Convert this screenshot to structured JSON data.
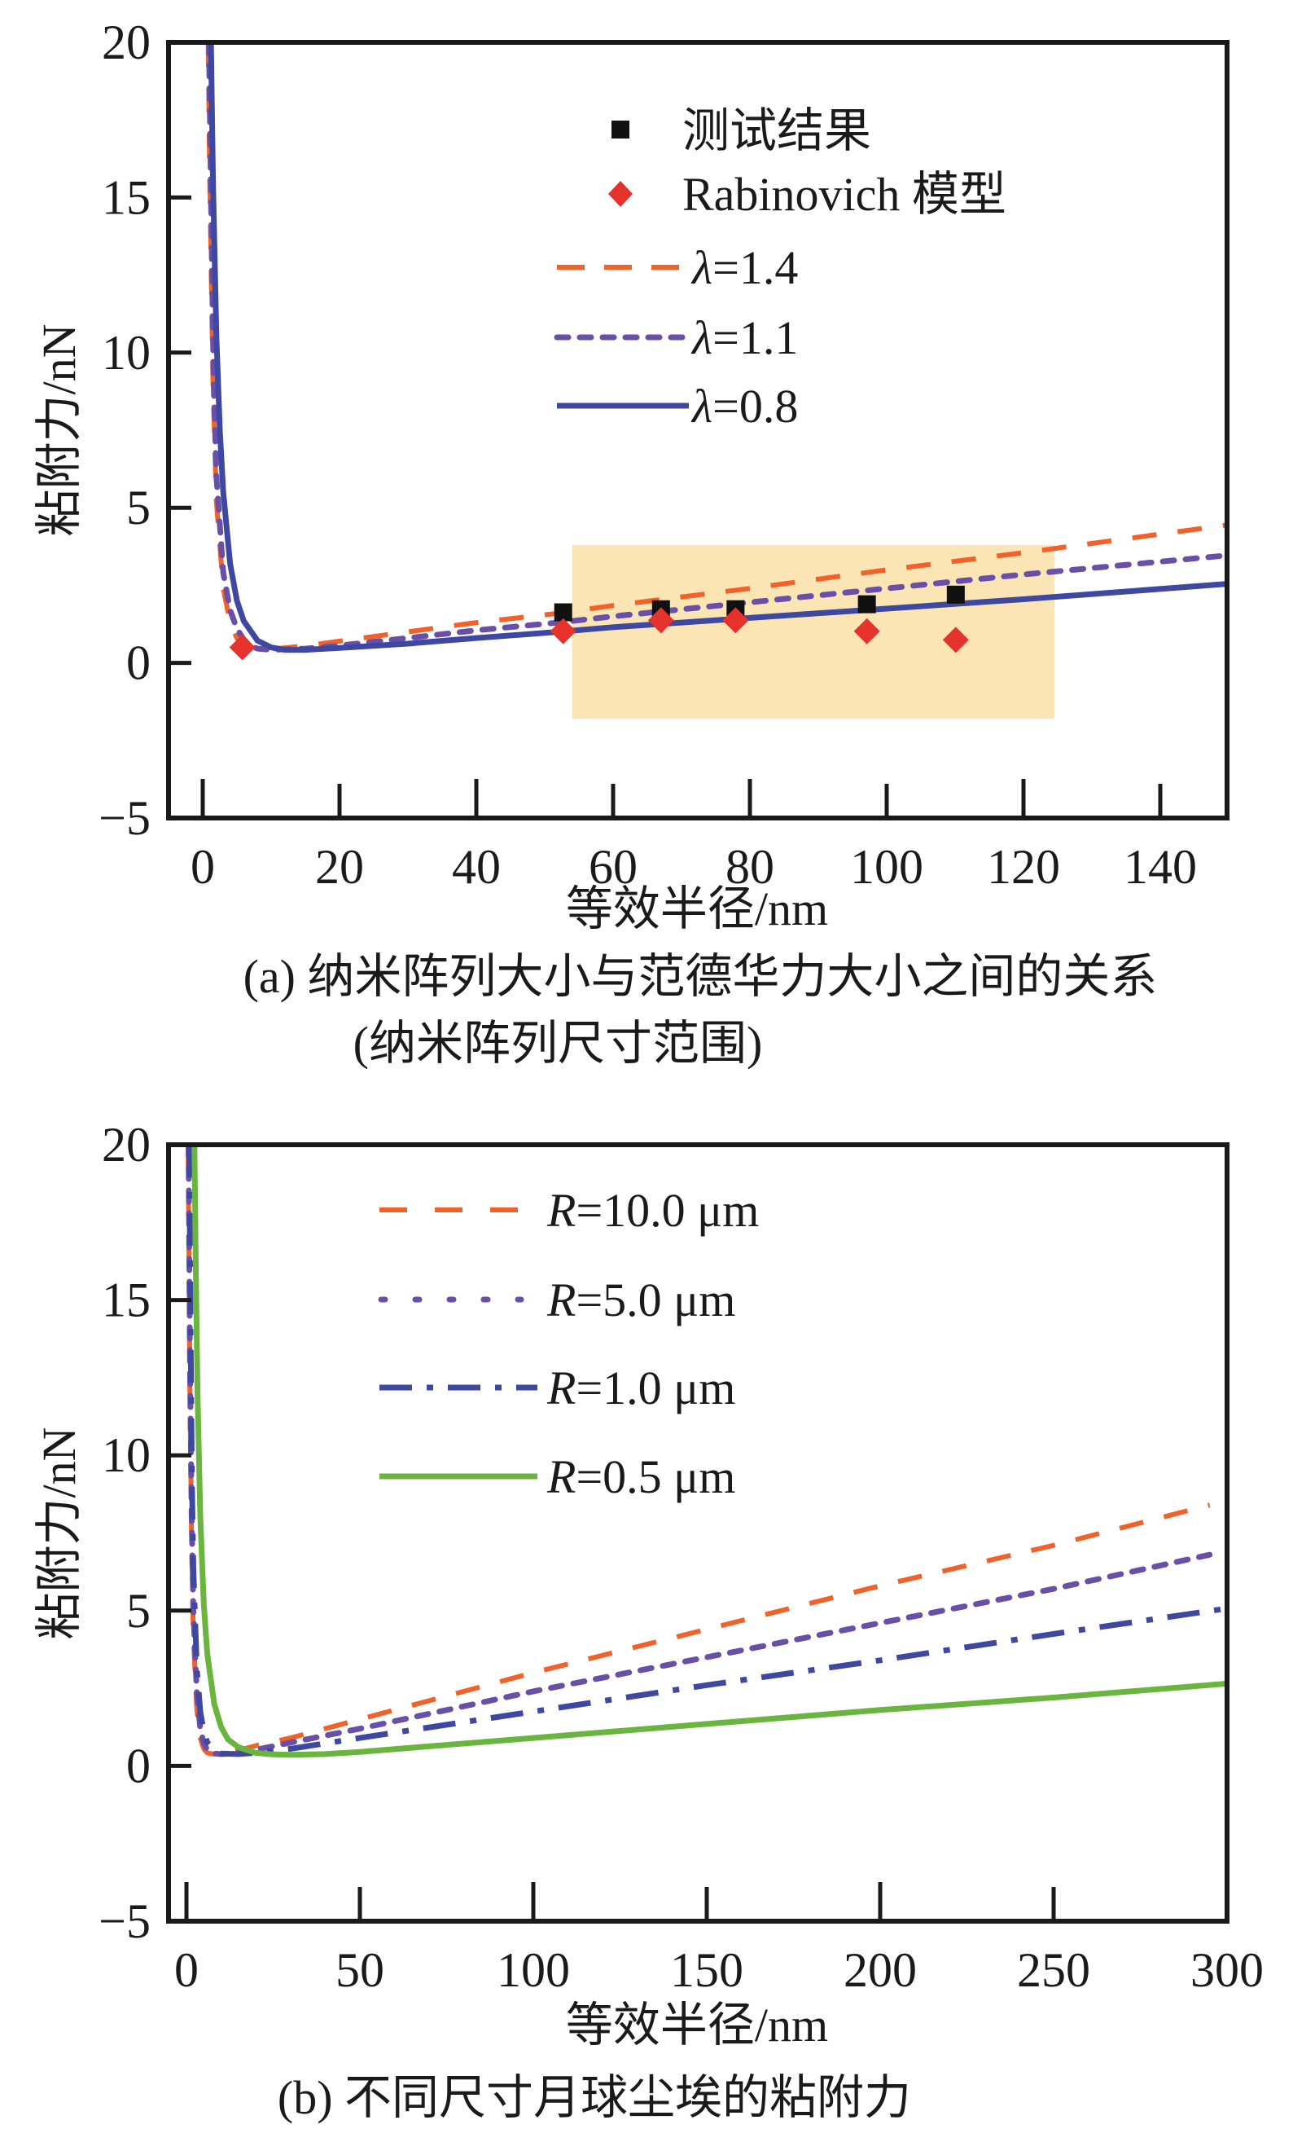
{
  "chart_data": [
    {
      "id": "a",
      "type": "line",
      "title": "(a) 纳米阵列大小与范德华力大小之间的关系",
      "subtitle": "(纳米阵列尺寸范围)",
      "xlabel": "等效半径/nm",
      "ylabel": "粘附力/nN",
      "xlim": [
        -5,
        150
      ],
      "ylim": [
        -5,
        20
      ],
      "xticks": [
        0,
        20,
        40,
        60,
        80,
        100,
        120,
        140
      ],
      "yticks": [
        -5,
        0,
        5,
        10,
        15,
        20
      ],
      "xtick_labels": [
        "0",
        "20",
        "40",
        "60",
        "80",
        "100",
        "120",
        "140"
      ],
      "ytick_labels": [
        "−5",
        "0",
        "5",
        "10",
        "15",
        "20"
      ],
      "grid": false,
      "legend_position": "top-center",
      "highlight_region": {
        "x": [
          54,
          124.5
        ],
        "y": [
          -1.8,
          3.8
        ],
        "color": "#fbe5b4"
      },
      "scatter": [
        {
          "name": "测试结果",
          "marker": "square",
          "color": "#111111",
          "x": [
            52.7,
            67.0,
            77.9,
            97.1,
            110.1
          ],
          "y": [
            1.63,
            1.73,
            1.73,
            1.89,
            2.2
          ]
        },
        {
          "name": "Rabinovich 模型",
          "marker": "diamond",
          "color": "#e5322c",
          "x": [
            5.8,
            52.7,
            67.0,
            77.9,
            97.1,
            110.1
          ],
          "y": [
            0.5,
            1.02,
            1.37,
            1.37,
            1.02,
            0.74
          ]
        }
      ],
      "series": [
        {
          "name": "λ=1.4",
          "style": "dashed",
          "color": "#f0622a",
          "x": [
            0.8,
            1,
            1.5,
            2,
            3,
            4,
            5,
            6,
            7,
            8,
            10,
            15,
            20,
            30,
            40,
            52,
            60,
            80,
            100,
            120,
            150
          ],
          "y": [
            20,
            16,
            9,
            5.2,
            2.4,
            1.3,
            0.8,
            0.55,
            0.45,
            0.42,
            0.44,
            0.55,
            0.7,
            1.0,
            1.3,
            1.6,
            1.85,
            2.4,
            3.0,
            3.55,
            4.45
          ]
        },
        {
          "name": "λ=1.1",
          "style": "dotted",
          "color": "#6a4fa8",
          "x": [
            0.9,
            1.2,
            1.6,
            2,
            3,
            4,
            5,
            6,
            7,
            8,
            10,
            15,
            20,
            30,
            40,
            52,
            60,
            80,
            100,
            120,
            150
          ],
          "y": [
            20,
            15,
            9,
            6,
            2.9,
            1.7,
            1.1,
            0.75,
            0.55,
            0.46,
            0.42,
            0.46,
            0.56,
            0.8,
            1.05,
            1.3,
            1.5,
            1.95,
            2.4,
            2.85,
            3.47
          ]
        },
        {
          "name": "λ=0.8",
          "style": "solid",
          "color": "#3f48a0",
          "x": [
            1.2,
            1.5,
            2,
            2.5,
            3,
            4,
            5,
            6,
            8,
            10,
            12,
            15,
            20,
            30,
            40,
            52,
            60,
            80,
            100,
            120,
            150
          ],
          "y": [
            20,
            15.5,
            10.5,
            7.5,
            5.5,
            3.2,
            2.0,
            1.35,
            0.72,
            0.5,
            0.42,
            0.42,
            0.48,
            0.62,
            0.8,
            1.0,
            1.15,
            1.45,
            1.75,
            2.05,
            2.55
          ]
        }
      ]
    },
    {
      "id": "b",
      "type": "line",
      "title": "(b) 不同尺寸月球尘埃的粘附力",
      "xlabel": "等效半径/nm",
      "ylabel": "粘附力/nN",
      "xlim": [
        -5,
        300
      ],
      "ylim": [
        -5,
        20
      ],
      "xticks": [
        0,
        50,
        100,
        150,
        200,
        250,
        300
      ],
      "yticks": [
        -5,
        0,
        5,
        10,
        15,
        20
      ],
      "xtick_labels": [
        "0",
        "50",
        "100",
        "150",
        "200",
        "250",
        "300"
      ],
      "ytick_labels": [
        "−5",
        "0",
        "5",
        "10",
        "15",
        "20"
      ],
      "grid": false,
      "legend_position": "top-center",
      "series": [
        {
          "name": "R=10.0 μm",
          "label_italic": "R",
          "label_rest": "=10.0 μm",
          "style": "dashed",
          "color": "#f0622a",
          "x": [
            0.5,
            1,
            1.5,
            2,
            3,
            4,
            5,
            6,
            8,
            10,
            15,
            20,
            30,
            50,
            100,
            150,
            200,
            250,
            295
          ],
          "y": [
            20,
            12,
            7,
            4.2,
            1.8,
            0.9,
            0.55,
            0.42,
            0.38,
            0.4,
            0.5,
            0.65,
            0.9,
            1.5,
            3.0,
            4.4,
            5.8,
            7.1,
            8.4
          ]
        },
        {
          "name": "R=5.0 μm",
          "label_italic": "R",
          "label_rest": "=5.0 μm",
          "style": "dotted",
          "color": "#6a4fa8",
          "x": [
            0.6,
            1,
            1.5,
            2,
            3,
            4,
            5,
            6,
            8,
            10,
            15,
            20,
            30,
            50,
            100,
            150,
            200,
            250,
            295
          ],
          "y": [
            20,
            13,
            8,
            5,
            2.3,
            1.2,
            0.72,
            0.52,
            0.4,
            0.38,
            0.42,
            0.52,
            0.75,
            1.2,
            2.4,
            3.5,
            4.6,
            5.7,
            6.8
          ]
        },
        {
          "name": "R=1.0 μm",
          "label_italic": "R",
          "label_rest": "=1.0 μm",
          "style": "dashdot",
          "color": "#3f48a0",
          "x": [
            0.8,
            1.2,
            1.6,
            2,
            3,
            4,
            5,
            6,
            8,
            10,
            15,
            20,
            30,
            50,
            100,
            150,
            200,
            250,
            300
          ],
          "y": [
            20,
            14,
            9,
            6.3,
            3.1,
            1.75,
            1.1,
            0.75,
            0.48,
            0.4,
            0.38,
            0.42,
            0.55,
            0.9,
            1.75,
            2.6,
            3.4,
            4.25,
            5.07
          ]
        },
        {
          "name": "R=0.5 μm",
          "label_italic": "R",
          "label_rest": "=0.5 μm",
          "style": "solid",
          "color": "#6ab53f",
          "x": [
            2.3,
            2.7,
            3.2,
            4,
            5,
            6,
            8,
            10,
            12,
            15,
            20,
            25,
            30,
            40,
            50,
            100,
            150,
            200,
            250,
            300
          ],
          "y": [
            20,
            16,
            12,
            8,
            5.2,
            3.6,
            2.0,
            1.25,
            0.85,
            0.6,
            0.42,
            0.37,
            0.36,
            0.38,
            0.45,
            0.9,
            1.35,
            1.8,
            2.2,
            2.65
          ]
        }
      ]
    }
  ]
}
